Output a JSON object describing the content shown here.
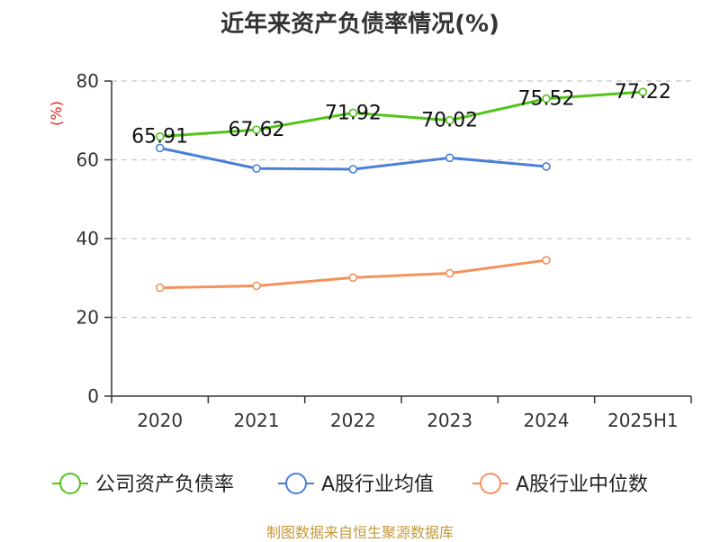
{
  "chart_data": {
    "type": "line",
    "title": "近年来资产负债率情况(%)",
    "ylabel": "(%)",
    "xlabel": "",
    "categories": [
      "2020",
      "2021",
      "2022",
      "2023",
      "2024",
      "2025H1"
    ],
    "ylim": [
      0,
      80
    ],
    "yticks": [
      0,
      20,
      40,
      60,
      80
    ],
    "grid": true,
    "legend_position": "bottom",
    "series": [
      {
        "name": "公司资产负债率",
        "color": "#52c41a",
        "values": [
          65.91,
          67.62,
          71.92,
          70.02,
          75.52,
          77.22
        ],
        "labels": [
          "65.91",
          "67.62",
          "71.92",
          "70.02",
          "75.52",
          "77.22"
        ]
      },
      {
        "name": "A股行业均值",
        "color": "#4a7fd8",
        "values": [
          63.0,
          57.8,
          57.6,
          60.5,
          58.3,
          null
        ]
      },
      {
        "name": "A股行业中位数",
        "color": "#f5915a",
        "values": [
          27.5,
          28.0,
          30.1,
          31.2,
          34.5,
          null
        ]
      }
    ]
  },
  "source": "制图数据来自恒生聚源数据库"
}
